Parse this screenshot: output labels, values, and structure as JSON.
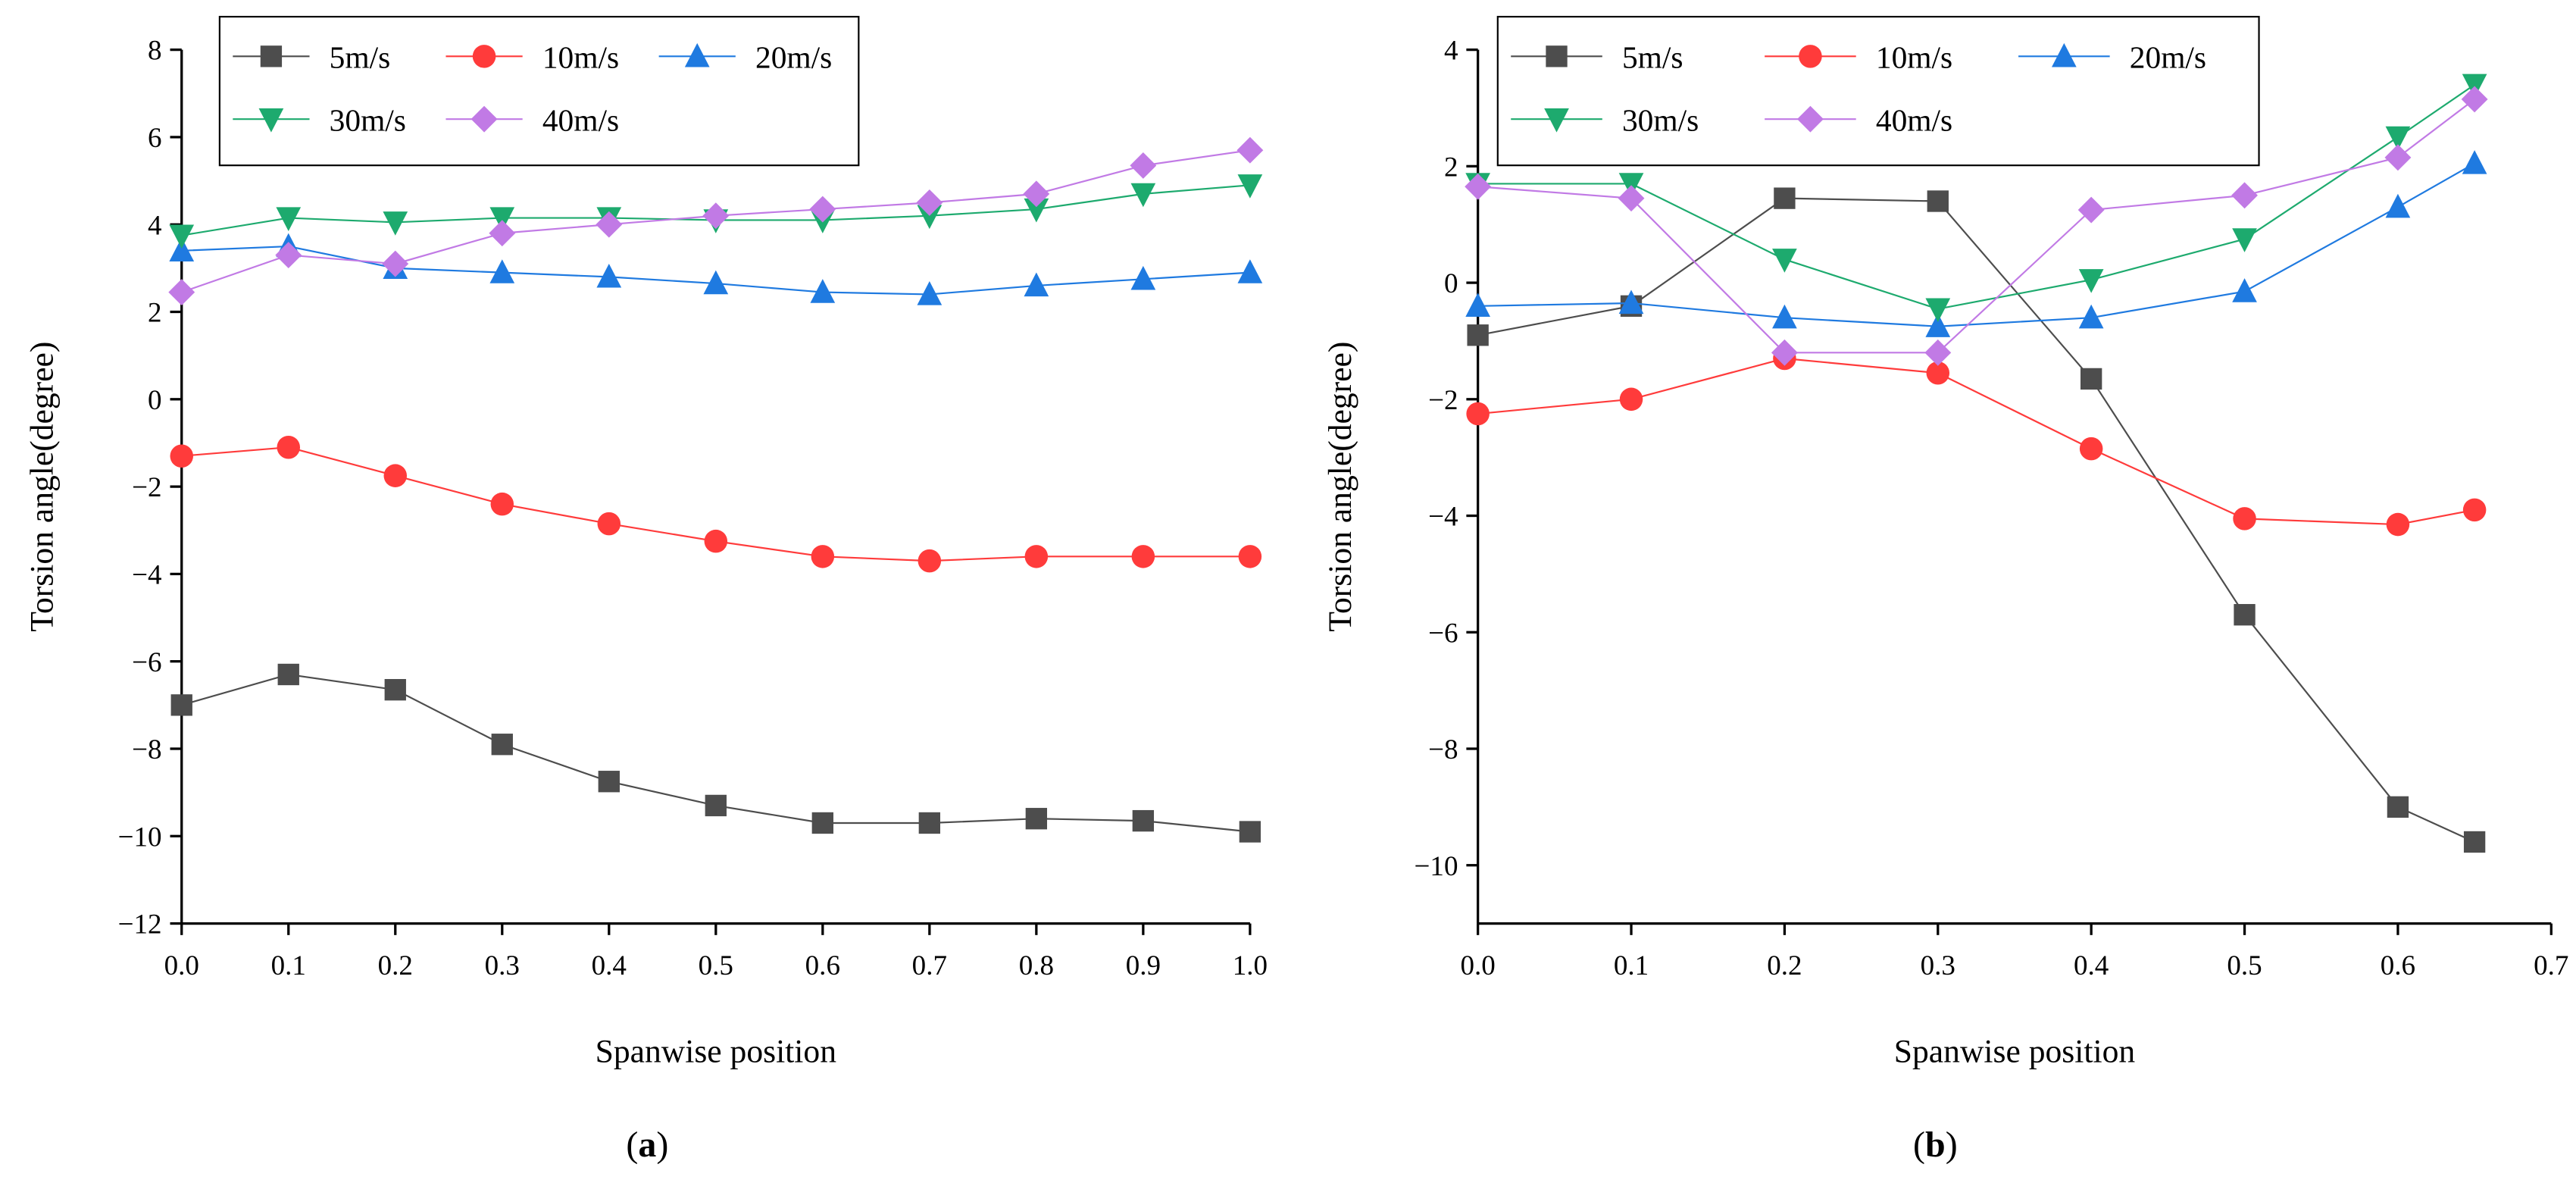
{
  "chart_data": [
    {
      "type": "line",
      "panel_label": "a",
      "xlabel": "Spanwise position",
      "ylabel": "Torsion angle(degree)",
      "xlim": [
        0,
        1.0
      ],
      "ylim": [
        -12,
        8
      ],
      "xticks": [
        "0.0",
        "0.1",
        "0.2",
        "0.3",
        "0.4",
        "0.5",
        "0.6",
        "0.7",
        "0.8",
        "0.9",
        "1.0"
      ],
      "yticks": [
        "-12",
        "-10",
        "-8",
        "-6",
        "-4",
        "-2",
        "0",
        "2",
        "4",
        "6",
        "8"
      ],
      "legend_position": "top-left",
      "x": [
        0,
        0.1,
        0.2,
        0.3,
        0.4,
        0.5,
        0.6,
        0.7,
        0.8,
        0.9,
        1.0
      ],
      "series": [
        {
          "name": "5m/s",
          "color": "#4d4d4d",
          "marker": "square",
          "values": [
            -7.0,
            -6.3,
            -6.65,
            -7.9,
            -8.75,
            -9.3,
            -9.7,
            -9.7,
            -9.6,
            -9.65,
            -9.9
          ]
        },
        {
          "name": "10m/s",
          "color": "#ff3b3b",
          "marker": "circle",
          "values": [
            -1.3,
            -1.1,
            -1.75,
            -2.4,
            -2.85,
            -3.25,
            -3.6,
            -3.7,
            -3.6,
            -3.6,
            -3.6
          ]
        },
        {
          "name": "20m/s",
          "color": "#1f7ae0",
          "marker": "triangle-up",
          "values": [
            3.4,
            3.5,
            3.0,
            2.9,
            2.8,
            2.65,
            2.45,
            2.4,
            2.6,
            2.75,
            2.9
          ]
        },
        {
          "name": "30m/s",
          "color": "#1daa6e",
          "marker": "triangle-down",
          "values": [
            3.75,
            4.15,
            4.05,
            4.15,
            4.15,
            4.1,
            4.1,
            4.2,
            4.35,
            4.7,
            4.9
          ]
        },
        {
          "name": "40m/s",
          "color": "#c17ae5",
          "marker": "diamond",
          "values": [
            2.45,
            3.3,
            3.1,
            3.8,
            4.0,
            4.2,
            4.35,
            4.5,
            4.7,
            5.35,
            5.7
          ]
        }
      ]
    },
    {
      "type": "line",
      "panel_label": "b",
      "xlabel": "Spanwise position",
      "ylabel": "Torsion angle(degree)",
      "xlim": [
        0,
        0.7
      ],
      "ylim": [
        -11,
        4
      ],
      "xticks": [
        "0.0",
        "0.1",
        "0.2",
        "0.3",
        "0.4",
        "0.5",
        "0.6",
        "0.7"
      ],
      "yticks": [
        "-10",
        "-8",
        "-6",
        "-4",
        "-2",
        "0",
        "2",
        "4"
      ],
      "legend_position": "top-left",
      "x": [
        0,
        0.1,
        0.2,
        0.3,
        0.4,
        0.5,
        0.6,
        0.65
      ],
      "series": [
        {
          "name": "5m/s",
          "color": "#4d4d4d",
          "marker": "square",
          "values": [
            -0.9,
            -0.4,
            1.45,
            1.4,
            -1.65,
            -5.7,
            -9.0,
            -9.6
          ]
        },
        {
          "name": "10m/s",
          "color": "#ff3b3b",
          "marker": "circle",
          "values": [
            -2.25,
            -2.0,
            -1.3,
            -1.55,
            -2.85,
            -4.05,
            -4.15,
            -3.9
          ]
        },
        {
          "name": "20m/s",
          "color": "#1f7ae0",
          "marker": "triangle-up",
          "values": [
            -0.4,
            -0.35,
            -0.6,
            -0.75,
            -0.6,
            -0.15,
            1.3,
            2.05
          ]
        },
        {
          "name": "30m/s",
          "color": "#1daa6e",
          "marker": "triangle-down",
          "values": [
            1.7,
            1.7,
            0.4,
            -0.45,
            0.05,
            0.75,
            2.5,
            3.4
          ]
        },
        {
          "name": "40m/s",
          "color": "#c17ae5",
          "marker": "diamond",
          "values": [
            1.65,
            1.45,
            -1.2,
            -1.2,
            1.25,
            1.5,
            2.15,
            3.15
          ]
        }
      ]
    }
  ]
}
